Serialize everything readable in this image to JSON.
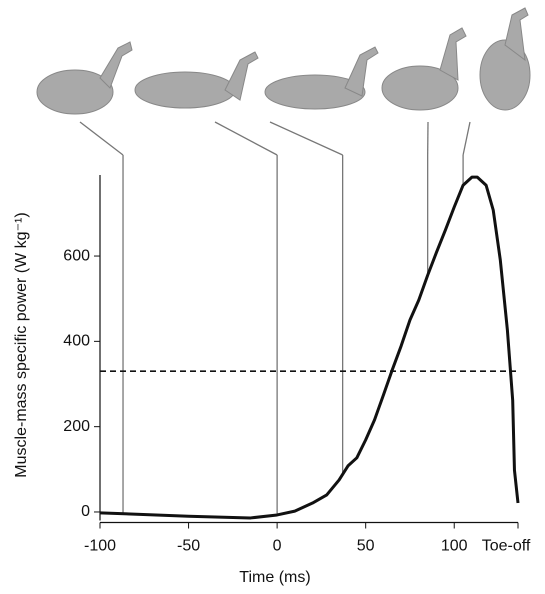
{
  "chart_data": {
    "type": "line",
    "x_label": "Time (ms)",
    "y_label": "Muscle-mass specific power (W kg⁻¹)",
    "x": [
      -100,
      -50,
      -15,
      0,
      10,
      20,
      28,
      35,
      40,
      45,
      50,
      55,
      60,
      65,
      70,
      75,
      80,
      85,
      90,
      95,
      100,
      105,
      110,
      113,
      118,
      122,
      126,
      130,
      133,
      134,
      136
    ],
    "series": [
      {
        "color": "#111111",
        "values": [
          -2,
          -10,
          -14,
          -7,
          2,
          21,
          40,
          75,
          108,
          127,
          169,
          216,
          274,
          333,
          389,
          450,
          497,
          555,
          609,
          661,
          715,
          766,
          785,
          785,
          766,
          708,
          591,
          427,
          262,
          98,
          21
        ]
      }
    ],
    "threshold": 330,
    "frame_times": [
      -87,
      0,
      37,
      85,
      105
    ],
    "xlim": [
      -100,
      136
    ],
    "ylim": [
      -20,
      790
    ],
    "xticks": [
      -100,
      -50,
      0,
      50,
      100,
      {
        "value": 136,
        "label": "Toe-off"
      }
    ],
    "yticks": [
      0,
      200,
      400,
      600
    ]
  }
}
